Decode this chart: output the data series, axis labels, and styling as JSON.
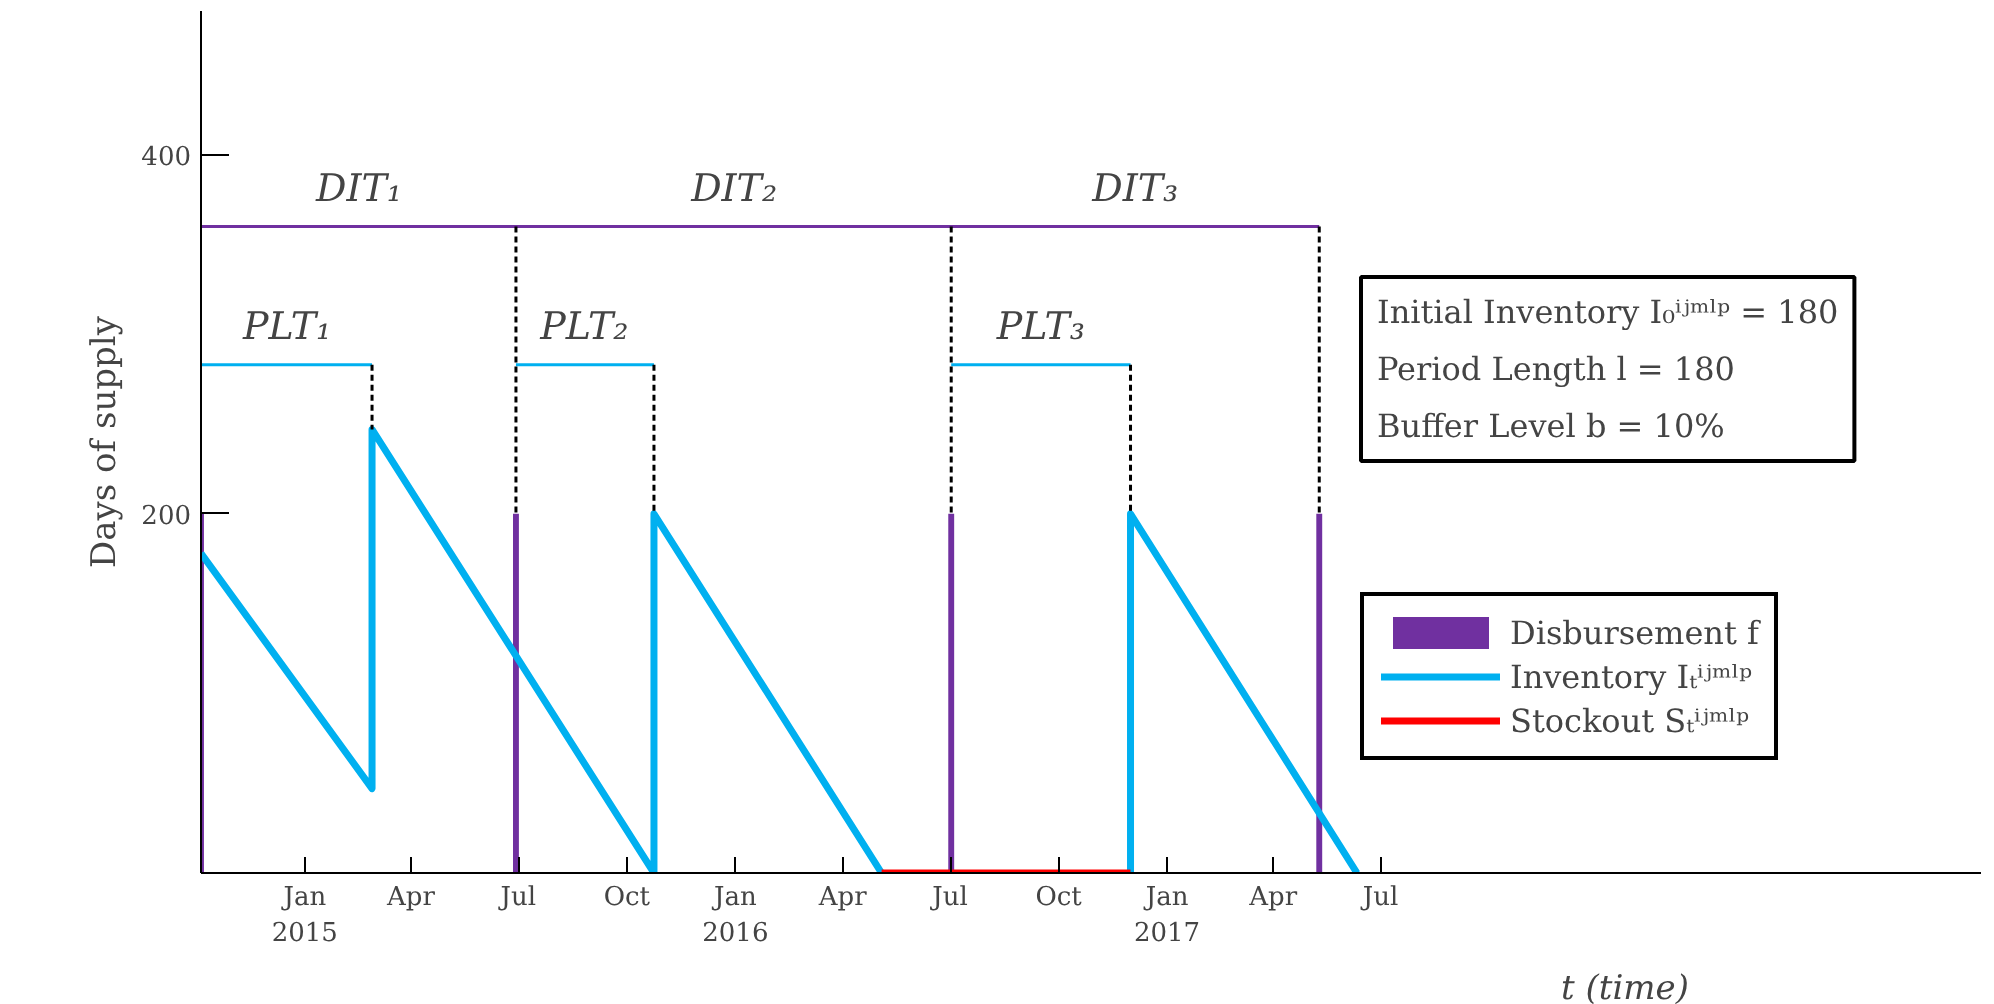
{
  "chart_data": {
    "type": "line",
    "xlabel": "t (time)",
    "ylabel": "Days of supply",
    "xlim": [
      "2014-10-05",
      "2018-11-22"
    ],
    "ylim": [
      0,
      480
    ],
    "xticks": [
      {
        "value": "2015-01-01",
        "label": "Jan\n2015"
      },
      {
        "value": "2015-04-01",
        "label": "Apr"
      },
      {
        "value": "2015-07-01",
        "label": "Jul"
      },
      {
        "value": "2015-10-01",
        "label": "Oct"
      },
      {
        "value": "2016-01-01",
        "label": "Jan\n2016"
      },
      {
        "value": "2016-04-01",
        "label": "Apr"
      },
      {
        "value": "2016-07-01",
        "label": "Jul"
      },
      {
        "value": "2016-10-01",
        "label": "Oct"
      },
      {
        "value": "2017-01-01",
        "label": "Jan\n2017"
      },
      {
        "value": "2017-04-01",
        "label": "Apr"
      },
      {
        "value": "2017-07-01",
        "label": "Jul"
      }
    ],
    "yticks": [
      200,
      400
    ],
    "grid": false,
    "legend": "right",
    "series": [
      {
        "name": "Disbursement f",
        "type": "bar",
        "color": "#7030a0",
        "x": [
          "2014-10-05",
          "2015-06-29",
          "2016-07-02",
          "2017-05-10"
        ],
        "values": [
          200,
          200,
          200,
          200
        ]
      },
      {
        "name": "Inventory Iₜⁱʲᵐˡᵖ",
        "color": "#00b0f0",
        "x": [
          "2014-10-05",
          "2015-02-27",
          "2015-02-27",
          "2015-10-24",
          "2015-10-24",
          "2016-05-04"
        ],
        "values": [
          178,
          47,
          247,
          0,
          200,
          0
        ]
      },
      {
        "color": "#00b0f0",
        "x": [
          "2016-12-01",
          "2016-12-01",
          "2017-06-11"
        ],
        "values": [
          0,
          200,
          0
        ]
      },
      {
        "name": "Stockout Sₜⁱʲᵐˡᵖ",
        "color": "#ff0000",
        "x": [
          "2016-05-04",
          "2016-12-01"
        ],
        "values": [
          0,
          0
        ]
      },
      {
        "color": "#7030a0",
        "x": [
          "2014-10-05",
          "2015-06-29",
          "2016-07-02",
          "2017-05-10"
        ],
        "values": [
          360,
          360,
          360,
          360
        ]
      },
      {
        "color": "#00b0f0",
        "x": [
          "2014-10-05",
          "2015-02-27"
        ],
        "values": [
          283,
          283
        ]
      },
      {
        "color": "#00b0f0",
        "x": [
          "2015-06-29",
          "2015-10-24"
        ],
        "values": [
          283,
          283
        ]
      },
      {
        "color": "#00b0f0",
        "x": [
          "2016-07-02",
          "2016-12-01"
        ],
        "values": [
          283,
          283
        ]
      },
      {
        "color": "#000000",
        "line_style": "dashed",
        "x": [
          "2015-02-27",
          "2015-02-27"
        ],
        "values": [
          283,
          247
        ]
      },
      {
        "color": "#000000",
        "line_style": "dashed",
        "x": [
          "2015-06-29",
          "2015-06-29"
        ],
        "values": [
          360,
          200
        ]
      },
      {
        "color": "#000000",
        "line_style": "dashed",
        "x": [
          "2015-10-24",
          "2015-10-24"
        ],
        "values": [
          283,
          200
        ]
      },
      {
        "color": "#000000",
        "line_style": "dashed",
        "x": [
          "2016-07-02",
          "2016-07-02"
        ],
        "values": [
          360,
          200
        ]
      },
      {
        "color": "#000000",
        "line_style": "dashed",
        "x": [
          "2016-12-01",
          "2016-12-01"
        ],
        "values": [
          283,
          200
        ]
      },
      {
        "color": "#000000",
        "line_style": "dashed",
        "x": [
          "2017-05-10",
          "2017-05-10"
        ],
        "values": [
          360,
          200
        ]
      }
    ],
    "annotations": [
      {
        "text": "DIT₁",
        "x": "2015-02-16",
        "y": 360
      },
      {
        "text": "DIT₂",
        "x": "2015-12-31",
        "y": 360
      },
      {
        "text": "DIT₃",
        "x": "2016-12-05",
        "y": 360
      },
      {
        "text": "PLT₁",
        "x": "2014-12-17",
        "y": 283
      },
      {
        "text": "PLT₂",
        "x": "2015-08-26",
        "y": 283
      },
      {
        "text": "PLT₃",
        "x": "2016-09-16",
        "y": 283
      },
      "Initial Inventory I₀ⁱʲᵐˡᵖ = 180",
      "Period Length l = 180",
      "Buffer Level b = 10%"
    ]
  }
}
